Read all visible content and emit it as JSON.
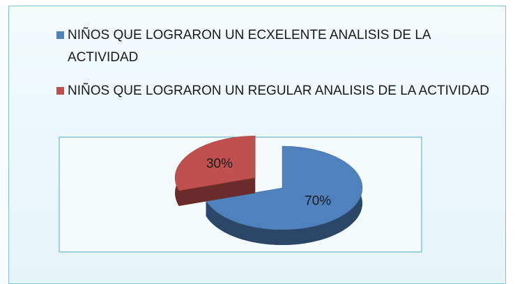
{
  "chart_data": {
    "type": "pie",
    "categories": [
      "NIÑOS QUE LOGRARON UN ECXELENTE ANALISIS DE LA ACTIVIDAD",
      "NIÑOS QUE LOGRARON UN REGULAR ANALISIS DE LA ACTIVIDAD"
    ],
    "values": [
      70,
      30
    ],
    "value_labels": [
      "70%",
      "30%"
    ],
    "colors": [
      "#4f81bd",
      "#c0504d"
    ],
    "legend": "top"
  }
}
